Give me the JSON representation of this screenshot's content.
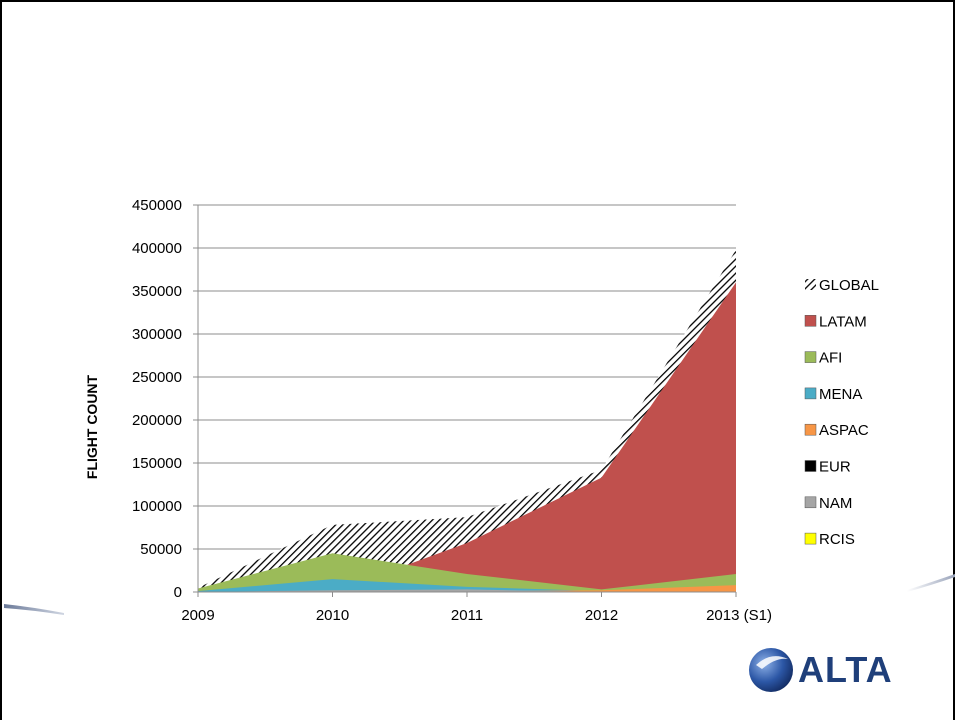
{
  "logo": {
    "text": "ALTA"
  },
  "colors": {
    "GLOBAL": "#000000",
    "LATAM": "#c0504d",
    "AFI": "#9bbb59",
    "MENA": "#4bacc6",
    "ASPAC": "#f79646",
    "EUR": "#000000",
    "NAM": "#a5a5a5",
    "RCIS": "#ffff00"
  },
  "chart_data": {
    "type": "area",
    "stacked": false,
    "title": "",
    "xlabel": "",
    "ylabel": "FLIGHT COUNT",
    "categories": [
      "2009",
      "2010",
      "2011",
      "2012",
      "2013 (S1)"
    ],
    "ylim": [
      0,
      450000
    ],
    "yticks": [
      "0",
      "50000",
      "100000",
      "150000",
      "200000",
      "250000",
      "300000",
      "350000",
      "400000",
      "450000"
    ],
    "grid": true,
    "legend_position": "right",
    "series": [
      {
        "name": "GLOBAL",
        "values": [
          5000,
          78000,
          87000,
          142000,
          398000
        ],
        "pattern": "hatched"
      },
      {
        "name": "LATAM",
        "values": [
          0,
          0,
          57000,
          133000,
          360000
        ]
      },
      {
        "name": "AFI",
        "values": [
          4000,
          45000,
          21000,
          3000,
          21000
        ]
      },
      {
        "name": "MENA",
        "values": [
          1000,
          15000,
          6000,
          1000,
          2000
        ]
      },
      {
        "name": "ASPAC",
        "values": [
          0,
          0,
          1000,
          2000,
          8000
        ]
      },
      {
        "name": "EUR",
        "values": [
          0,
          0,
          0,
          0,
          0
        ]
      },
      {
        "name": "NAM",
        "values": [
          0,
          2000,
          3000,
          0,
          0
        ]
      },
      {
        "name": "RCIS",
        "values": [
          0,
          0,
          0,
          0,
          0
        ]
      }
    ]
  }
}
